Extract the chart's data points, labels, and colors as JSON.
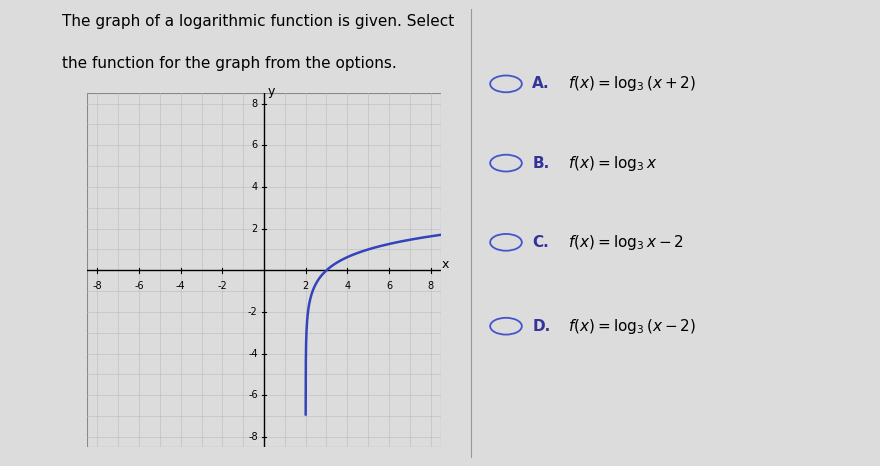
{
  "title_line1": "The graph of a logarithmic function is given. Select",
  "title_line2": "the function for the graph from the options.",
  "title_fontsize": 11,
  "options_letters": [
    "A.",
    "B.",
    "C.",
    "D."
  ],
  "options_formulas": [
    "$f(x)=\\log_3(x+2)$",
    "$f(x)=\\log_3 x$",
    "$f(x)=\\log_3 x-2$",
    "$f(x)=\\log_3(x-2)$"
  ],
  "function": "log3_x_minus_2",
  "base": 3,
  "shift": 2,
  "xlim": [
    -8.5,
    8.5
  ],
  "ylim": [
    -8.5,
    8.5
  ],
  "grid_color": "#bbbbbb",
  "curve_color": "#3344bb",
  "curve_linewidth": 1.8,
  "axis_color": "#000000",
  "background_color": "#dcdcdc",
  "graph_bg": "#ffffff",
  "tick_vals": [
    -8,
    -6,
    -4,
    -2,
    2,
    4,
    6,
    8
  ],
  "tick_fontsize": 7,
  "option_circle_color": "#4455cc",
  "option_letter_color": "#333399",
  "option_fontsize": 11
}
